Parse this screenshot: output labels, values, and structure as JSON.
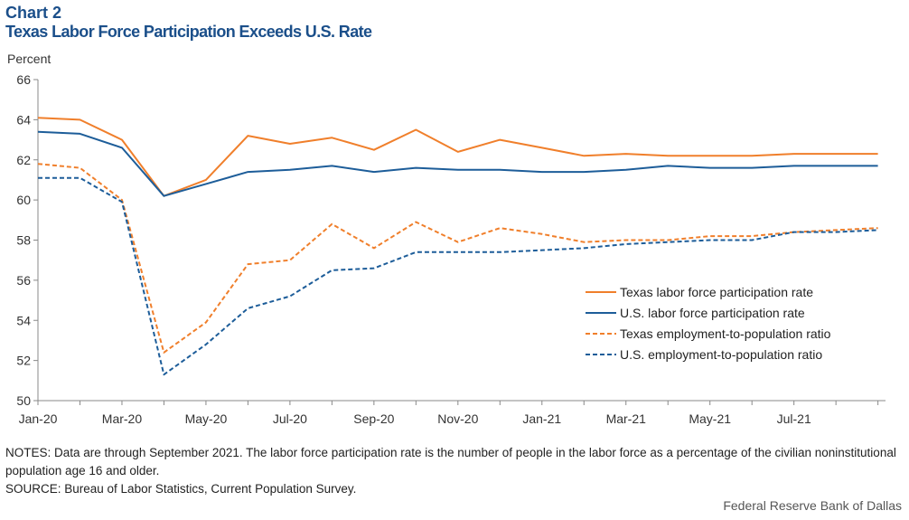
{
  "header": {
    "chart_label": "Chart 2",
    "title": "Texas Labor Force Participation Exceeds U.S. Rate",
    "unit": "Percent"
  },
  "notes": {
    "line1": "NOTES: Data are through September 2021. The labor force participation rate is the number of people in the labor force as a percentage of the civilian noninstitutional population age 16 and older.",
    "line2": "SOURCE: Bureau of Labor Statistics, Current Population Survey."
  },
  "credit": "Federal Reserve Bank of Dallas",
  "chart_data": {
    "type": "line",
    "title": "Texas Labor Force Participation Exceeds U.S. Rate",
    "ylabel": "Percent",
    "xlabel": "",
    "ylim": [
      50,
      66
    ],
    "yticks": [
      50,
      52,
      54,
      56,
      58,
      60,
      62,
      64,
      66
    ],
    "x": [
      "Jan-20",
      "Feb-20",
      "Mar-20",
      "Apr-20",
      "May-20",
      "Jun-20",
      "Jul-20",
      "Aug-20",
      "Sep-20",
      "Oct-20",
      "Nov-20",
      "Dec-20",
      "Jan-21",
      "Feb-21",
      "Mar-21",
      "Apr-21",
      "May-21",
      "Jun-21",
      "Jul-21",
      "Aug-21",
      "Sep-21"
    ],
    "xtick_labels": [
      "Jan-20",
      "Mar-20",
      "May-20",
      "Jul-20",
      "Sep-20",
      "Nov-20",
      "Jan-21",
      "Mar-21",
      "May-21",
      "Jul-21"
    ],
    "grid": false,
    "legend_position": "bottom-right",
    "series": [
      {
        "name": "Texas labor force participation rate",
        "color": "#f07f2b",
        "dashed": false,
        "values": [
          64.1,
          64.0,
          63.0,
          60.2,
          61.0,
          63.2,
          62.8,
          63.1,
          62.5,
          63.5,
          62.4,
          63.0,
          62.6,
          62.2,
          62.3,
          62.2,
          62.2,
          62.2,
          62.3,
          62.3,
          62.3
        ]
      },
      {
        "name": "U.S. labor force participation rate",
        "color": "#1d5d99",
        "dashed": false,
        "values": [
          63.4,
          63.3,
          62.6,
          60.2,
          60.8,
          61.4,
          61.5,
          61.7,
          61.4,
          61.6,
          61.5,
          61.5,
          61.4,
          61.4,
          61.5,
          61.7,
          61.6,
          61.6,
          61.7,
          61.7,
          61.7
        ]
      },
      {
        "name": "Texas employment-to-population ratio",
        "color": "#f07f2b",
        "dashed": true,
        "values": [
          61.8,
          61.6,
          60.0,
          52.4,
          53.9,
          56.8,
          57.0,
          58.8,
          57.6,
          58.9,
          57.9,
          58.6,
          58.3,
          57.9,
          58.0,
          58.0,
          58.2,
          58.2,
          58.4,
          58.5,
          58.6
        ]
      },
      {
        "name": "U.S. employment-to-population ratio",
        "color": "#1d5d99",
        "dashed": true,
        "values": [
          61.1,
          61.1,
          59.9,
          51.3,
          52.8,
          54.6,
          55.2,
          56.5,
          56.6,
          57.4,
          57.4,
          57.4,
          57.5,
          57.6,
          57.8,
          57.9,
          58.0,
          58.0,
          58.4,
          58.4,
          58.5
        ]
      }
    ]
  }
}
